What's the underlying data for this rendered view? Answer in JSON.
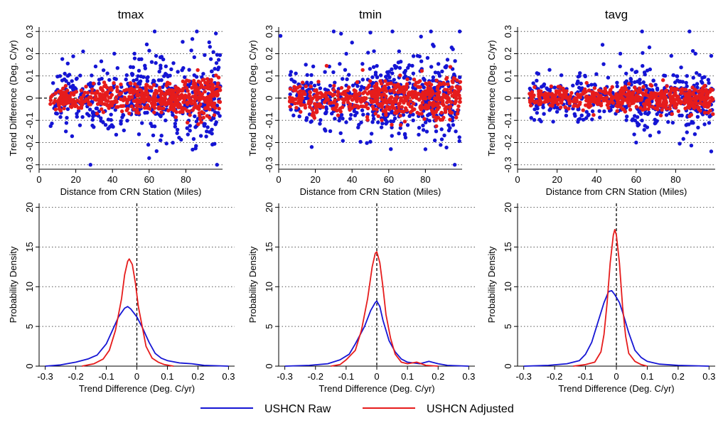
{
  "colors": {
    "raw": "#1515d4",
    "adjusted": "#e61c1c"
  },
  "legend": {
    "placement": "bottom",
    "entries": [
      {
        "label": "USHCN Raw",
        "color": "#1515d4"
      },
      {
        "label": "USHCN Adjusted",
        "color": "#e61c1c"
      }
    ]
  },
  "chart_data": [
    {
      "type": "scatter",
      "title": "tmax",
      "xlabel": "Distance from CRN Station (Miles)",
      "ylabel": "Trend Difference (Deg. C/yr)",
      "xlim": [
        0,
        100
      ],
      "ylim": [
        -0.32,
        0.32
      ],
      "xticks": [
        "0",
        "20",
        "40",
        "60",
        "80"
      ],
      "yticks": [
        "-0.3",
        "-0.2",
        "-0.1",
        "0",
        "0.1",
        "0.2",
        "0.3"
      ],
      "grid": "horizontal-dotted",
      "reference_line": 0,
      "series": [
        {
          "name": "USHCN Raw",
          "color": "#1515d4",
          "spread": 0.085,
          "outliers": [
            [
              24,
              0.21
            ],
            [
              28,
              -0.3
            ],
            [
              41,
              0.2
            ],
            [
              52,
              0.2
            ],
            [
              63,
              0.3
            ],
            [
              86,
              0.3
            ],
            [
              60,
              -0.27
            ],
            [
              97,
              -0.3
            ],
            [
              14,
              0.11
            ]
          ]
        },
        {
          "name": "USHCN Adjusted",
          "color": "#e61c1c",
          "spread": 0.032
        }
      ]
    },
    {
      "type": "scatter",
      "title": "tmin",
      "xlabel": "Distance from CRN Station (Miles)",
      "ylabel": "Trend Difference (Deg. C/yr)",
      "xlim": [
        0,
        100
      ],
      "ylim": [
        -0.32,
        0.32
      ],
      "xticks": [
        "0",
        "20",
        "40",
        "60",
        "80"
      ],
      "yticks": [
        "-0.3",
        "-0.2",
        "-0.1",
        "0",
        "0.1",
        "0.2",
        "0.3"
      ],
      "grid": "horizontal-dotted",
      "reference_line": 0,
      "series": [
        {
          "name": "USHCN Raw",
          "color": "#1515d4",
          "spread": 0.08,
          "outliers": [
            [
              1,
              0.28
            ],
            [
              30,
              0.3
            ],
            [
              34,
              0.29
            ],
            [
              62,
              0.3
            ],
            [
              83,
              0.3
            ],
            [
              95,
              0.22
            ],
            [
              18,
              -0.22
            ],
            [
              96,
              -0.3
            ],
            [
              80,
              -0.23
            ],
            [
              40,
              0.25
            ]
          ]
        },
        {
          "name": "USHCN Adjusted",
          "color": "#e61c1c",
          "spread": 0.04
        }
      ]
    },
    {
      "type": "scatter",
      "title": "tavg",
      "xlabel": "Distance from CRN Station (Miles)",
      "ylabel": "Trend Difference (Deg. C/yr)",
      "xlim": [
        0,
        100
      ],
      "ylim": [
        -0.32,
        0.32
      ],
      "xticks": [
        "0",
        "20",
        "40",
        "60",
        "80"
      ],
      "yticks": [
        "-0.3",
        "-0.2",
        "-0.1",
        "0",
        "0.1",
        "0.2",
        "0.3"
      ],
      "grid": "horizontal-dotted",
      "reference_line": 0,
      "series": [
        {
          "name": "USHCN Raw",
          "color": "#1515d4",
          "spread": 0.06,
          "outliers": [
            [
              63,
              0.3
            ],
            [
              87,
              0.3
            ],
            [
              43,
              0.24
            ],
            [
              52,
              0.2
            ],
            [
              98,
              -0.24
            ],
            [
              60,
              -0.2
            ],
            [
              90,
              0.2
            ],
            [
              98,
              0.19
            ]
          ]
        },
        {
          "name": "USHCN Adjusted",
          "color": "#e61c1c",
          "spread": 0.025
        }
      ]
    },
    {
      "type": "line",
      "title": "",
      "xlabel": "Trend Difference (Deg. C/yr)",
      "ylabel": "Probability Density",
      "xlim": [
        -0.32,
        0.32
      ],
      "ylim": [
        0,
        20.5
      ],
      "xticks": [
        "-0.3",
        "-0.2",
        "-0.1",
        "0",
        "0.1",
        "0.2",
        "0.3"
      ],
      "yticks": [
        "0",
        "5",
        "10",
        "15",
        "20"
      ],
      "grid": "horizontal-dotted",
      "reference_line": 0,
      "series": [
        {
          "name": "USHCN Raw",
          "color": "#1515d4",
          "points": [
            [
              -0.3,
              0
            ],
            [
              -0.25,
              0.15
            ],
            [
              -0.2,
              0.5
            ],
            [
              -0.16,
              0.9
            ],
            [
              -0.13,
              1.4
            ],
            [
              -0.1,
              2.8
            ],
            [
              -0.08,
              4.5
            ],
            [
              -0.06,
              6.2
            ],
            [
              -0.04,
              7.3
            ],
            [
              -0.03,
              7.5
            ],
            [
              -0.02,
              7.2
            ],
            [
              0,
              6.2
            ],
            [
              0.02,
              4.7
            ],
            [
              0.04,
              3.0
            ],
            [
              0.06,
              1.6
            ],
            [
              0.08,
              1.0
            ],
            [
              0.1,
              0.7
            ],
            [
              0.14,
              0.4
            ],
            [
              0.18,
              0.3
            ],
            [
              0.2,
              0.2
            ],
            [
              0.22,
              0.1
            ],
            [
              0.3,
              0
            ]
          ]
        },
        {
          "name": "USHCN Adjusted",
          "color": "#e61c1c",
          "points": [
            [
              -0.18,
              0
            ],
            [
              -0.14,
              0.3
            ],
            [
              -0.11,
              0.9
            ],
            [
              -0.09,
              2.0
            ],
            [
              -0.07,
              4.5
            ],
            [
              -0.05,
              8.5
            ],
            [
              -0.04,
              11.5
            ],
            [
              -0.03,
              13.2
            ],
            [
              -0.025,
              13.5
            ],
            [
              -0.015,
              12.8
            ],
            [
              -0.005,
              10.5
            ],
            [
              0.005,
              7.5
            ],
            [
              0.02,
              4.5
            ],
            [
              0.03,
              2.5
            ],
            [
              0.05,
              1.0
            ],
            [
              0.07,
              0.5
            ],
            [
              0.09,
              0.2
            ],
            [
              0.12,
              0
            ]
          ]
        }
      ]
    },
    {
      "type": "line",
      "title": "",
      "xlabel": "Trend Difference (Deg. C/yr)",
      "ylabel": "Probability Density",
      "xlim": [
        -0.32,
        0.32
      ],
      "ylim": [
        0,
        20.5
      ],
      "xticks": [
        "-0.3",
        "-0.2",
        "-0.1",
        "0",
        "0.1",
        "0.2",
        "0.3"
      ],
      "yticks": [
        "0",
        "5",
        "10",
        "15",
        "20"
      ],
      "grid": "horizontal-dotted",
      "reference_line": 0,
      "series": [
        {
          "name": "USHCN Raw",
          "color": "#1515d4",
          "points": [
            [
              -0.3,
              0
            ],
            [
              -0.22,
              0.1
            ],
            [
              -0.16,
              0.3
            ],
            [
              -0.12,
              0.8
            ],
            [
              -0.09,
              1.5
            ],
            [
              -0.07,
              2.8
            ],
            [
              -0.04,
              5.0
            ],
            [
              -0.02,
              7.0
            ],
            [
              -0.005,
              8.0
            ],
            [
              0,
              8.2
            ],
            [
              0.01,
              7.5
            ],
            [
              0.02,
              5.8
            ],
            [
              0.04,
              3.2
            ],
            [
              0.06,
              1.8
            ],
            [
              0.08,
              0.9
            ],
            [
              0.1,
              0.5
            ],
            [
              0.14,
              0.3
            ],
            [
              0.17,
              0.6
            ],
            [
              0.2,
              0.3
            ],
            [
              0.23,
              0.1
            ],
            [
              0.3,
              0
            ]
          ]
        },
        {
          "name": "USHCN Adjusted",
          "color": "#e61c1c",
          "points": [
            [
              -0.15,
              0
            ],
            [
              -0.12,
              0.2
            ],
            [
              -0.1,
              0.8
            ],
            [
              -0.07,
              2.0
            ],
            [
              -0.05,
              4.5
            ],
            [
              -0.03,
              8.5
            ],
            [
              -0.015,
              12.5
            ],
            [
              -0.005,
              14.2
            ],
            [
              0,
              14.4
            ],
            [
              0.01,
              13.0
            ],
            [
              0.02,
              10.0
            ],
            [
              0.03,
              6.5
            ],
            [
              0.045,
              3.5
            ],
            [
              0.06,
              1.5
            ],
            [
              0.08,
              0.5
            ],
            [
              0.1,
              0.3
            ],
            [
              0.13,
              0.5
            ],
            [
              0.16,
              0.1
            ],
            [
              0.2,
              0
            ]
          ]
        }
      ]
    },
    {
      "type": "line",
      "title": "",
      "xlabel": "Trend Difference (Deg. C/yr)",
      "ylabel": "Probability Density",
      "xlim": [
        -0.32,
        0.32
      ],
      "ylim": [
        0,
        20.5
      ],
      "xticks": [
        "-0.3",
        "-0.2",
        "-0.1",
        "0",
        "0.1",
        "0.2",
        "0.3"
      ],
      "yticks": [
        "0",
        "5",
        "10",
        "15",
        "20"
      ],
      "grid": "horizontal-dotted",
      "reference_line": 0,
      "series": [
        {
          "name": "USHCN Raw",
          "color": "#1515d4",
          "points": [
            [
              -0.3,
              0
            ],
            [
              -0.22,
              0.1
            ],
            [
              -0.16,
              0.3
            ],
            [
              -0.12,
              0.7
            ],
            [
              -0.1,
              1.5
            ],
            [
              -0.08,
              3.0
            ],
            [
              -0.06,
              5.5
            ],
            [
              -0.04,
              8.0
            ],
            [
              -0.025,
              9.4
            ],
            [
              -0.015,
              9.5
            ],
            [
              -0.005,
              9.0
            ],
            [
              0.01,
              8.0
            ],
            [
              0.02,
              6.8
            ],
            [
              0.04,
              4.2
            ],
            [
              0.06,
              2.0
            ],
            [
              0.08,
              1.1
            ],
            [
              0.1,
              0.6
            ],
            [
              0.14,
              0.25
            ],
            [
              0.2,
              0.1
            ],
            [
              0.3,
              0
            ]
          ]
        },
        {
          "name": "USHCN Adjusted",
          "color": "#e61c1c",
          "points": [
            [
              -0.14,
              0
            ],
            [
              -0.1,
              0.2
            ],
            [
              -0.07,
              0.5
            ],
            [
              -0.05,
              1.8
            ],
            [
              -0.04,
              4.0
            ],
            [
              -0.03,
              8.0
            ],
            [
              -0.02,
              13.0
            ],
            [
              -0.01,
              16.5
            ],
            [
              -0.005,
              17.2
            ],
            [
              0,
              16.5
            ],
            [
              0.01,
              13.0
            ],
            [
              0.02,
              7.5
            ],
            [
              0.03,
              3.8
            ],
            [
              0.04,
              1.6
            ],
            [
              0.06,
              0.6
            ],
            [
              0.08,
              0.2
            ],
            [
              0.1,
              0
            ]
          ]
        }
      ]
    }
  ]
}
